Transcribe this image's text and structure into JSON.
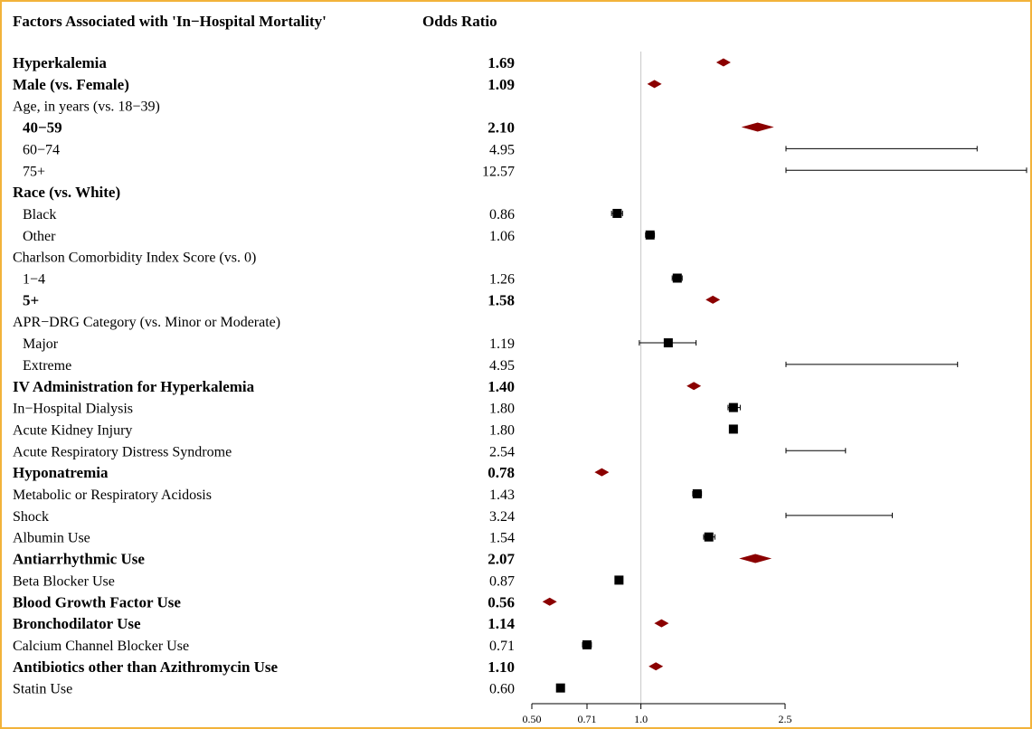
{
  "chart_data": {
    "type": "forest",
    "header": {
      "label_col": "Factors Associated with 'In−Hospital Mortality'",
      "value_col": "Odds Ratio"
    },
    "x_scale": "log",
    "xlim": [
      0.5,
      2.5
    ],
    "reference_line": 1.0,
    "x_ticks": [
      "0.50",
      "0.71",
      "1.0",
      "2.5"
    ],
    "x_tick_values": [
      0.5,
      0.71,
      1.0,
      2.5
    ],
    "colors": {
      "diamond": "#8b0000",
      "square": "#000000",
      "line": "#000000",
      "ref": "#c8c8c8"
    },
    "rows": [
      {
        "label": "Hyperkalemia",
        "or": "1.69",
        "value": 1.69,
        "bold": true,
        "indent": false,
        "marker": "diamond",
        "ci": null
      },
      {
        "label": "Male (vs. Female)",
        "or": "1.09",
        "value": 1.09,
        "bold": true,
        "indent": false,
        "marker": "diamond",
        "ci": null
      },
      {
        "label": "Age, in years (vs. 18−39)",
        "or": "",
        "value": null,
        "bold": false,
        "indent": false,
        "marker": "none",
        "ci": null
      },
      {
        "label": "40−59",
        "or": "2.10",
        "value": 2.1,
        "bold": true,
        "indent": true,
        "marker": "diamond",
        "ci": null
      },
      {
        "label": "60−74",
        "or": "4.95",
        "value": 4.95,
        "bold": false,
        "indent": true,
        "marker": "square",
        "ci": [
          4.1,
          6.0
        ]
      },
      {
        "label": "75+",
        "or": "12.57",
        "value": 12.57,
        "bold": false,
        "indent": true,
        "marker": "square",
        "ci": [
          10.0,
          15.5
        ]
      },
      {
        "label": "Race (vs. White)",
        "or": "",
        "value": null,
        "bold": true,
        "indent": false,
        "marker": "none",
        "ci": null
      },
      {
        "label": "Black",
        "or": "0.86",
        "value": 0.86,
        "bold": false,
        "indent": true,
        "marker": "square",
        "ci": [
          0.83,
          0.89
        ]
      },
      {
        "label": "Other",
        "or": "1.06",
        "value": 1.06,
        "bold": false,
        "indent": true,
        "marker": "square",
        "ci": [
          1.03,
          1.09
        ]
      },
      {
        "label": "Charlson Comorbidity Index Score (vs. 0)",
        "or": "",
        "value": null,
        "bold": false,
        "indent": false,
        "marker": "none",
        "ci": null
      },
      {
        "label": "1−4",
        "or": "1.26",
        "value": 1.26,
        "bold": false,
        "indent": true,
        "marker": "square",
        "ci": [
          1.22,
          1.3
        ]
      },
      {
        "label": "5+",
        "or": "1.58",
        "value": 1.58,
        "bold": true,
        "indent": true,
        "marker": "diamond",
        "ci": null
      },
      {
        "label": "APR−DRG Category (vs. Minor or Moderate)",
        "or": "",
        "value": null,
        "bold": false,
        "indent": false,
        "marker": "none",
        "ci": null
      },
      {
        "label": "Major",
        "or": "1.19",
        "value": 1.19,
        "bold": false,
        "indent": true,
        "marker": "square",
        "ci": [
          0.99,
          1.42
        ]
      },
      {
        "label": "Extreme",
        "or": "4.95",
        "value": 4.95,
        "bold": false,
        "indent": true,
        "marker": "square",
        "ci": [
          4.1,
          5.3
        ]
      },
      {
        "label": "IV Administration for Hyperkalemia",
        "or": "1.40",
        "value": 1.4,
        "bold": true,
        "indent": false,
        "marker": "diamond",
        "ci": null
      },
      {
        "label": "In−Hospital Dialysis",
        "or": "1.80",
        "value": 1.8,
        "bold": false,
        "indent": false,
        "marker": "square",
        "ci": [
          1.74,
          1.88
        ]
      },
      {
        "label": "Acute Kidney Injury",
        "or": "1.80",
        "value": 1.8,
        "bold": false,
        "indent": false,
        "marker": "square",
        "ci": [
          1.76,
          1.84
        ]
      },
      {
        "label": "Acute Respiratory Distress Syndrome",
        "or": "2.54",
        "value": 2.54,
        "bold": false,
        "indent": false,
        "marker": "square",
        "ci": [
          2.45,
          2.6
        ]
      },
      {
        "label": "Hyponatremia",
        "or": "0.78",
        "value": 0.78,
        "bold": true,
        "indent": false,
        "marker": "diamond",
        "ci": null
      },
      {
        "label": "Metabolic or Respiratory Acidosis",
        "or": "1.43",
        "value": 1.43,
        "bold": false,
        "indent": false,
        "marker": "square",
        "ci": [
          1.39,
          1.47
        ]
      },
      {
        "label": "Shock",
        "or": "3.24",
        "value": 3.24,
        "bold": false,
        "indent": false,
        "marker": "square",
        "ci": [
          3.0,
          3.5
        ]
      },
      {
        "label": "Albumin Use",
        "or": "1.54",
        "value": 1.54,
        "bold": false,
        "indent": false,
        "marker": "square",
        "ci": [
          1.49,
          1.6
        ]
      },
      {
        "label": "Antiarrhythmic Use",
        "or": "2.07",
        "value": 2.07,
        "bold": true,
        "indent": false,
        "marker": "diamond",
        "ci": null
      },
      {
        "label": "Beta Blocker Use",
        "or": "0.87",
        "value": 0.87,
        "bold": false,
        "indent": false,
        "marker": "square",
        "ci": [
          0.85,
          0.89
        ]
      },
      {
        "label": "Blood Growth Factor Use",
        "or": "0.56",
        "value": 0.56,
        "bold": true,
        "indent": false,
        "marker": "diamond",
        "ci": null
      },
      {
        "label": "Bronchodilator Use",
        "or": "1.14",
        "value": 1.14,
        "bold": true,
        "indent": false,
        "marker": "diamond",
        "ci": null
      },
      {
        "label": "Calcium Channel Blocker Use",
        "or": "0.71",
        "value": 0.71,
        "bold": false,
        "indent": false,
        "marker": "square",
        "ci": [
          0.69,
          0.73
        ]
      },
      {
        "label": "Antibiotics other than Azithromycin Use",
        "or": "1.10",
        "value": 1.1,
        "bold": true,
        "indent": false,
        "marker": "diamond",
        "ci": null
      },
      {
        "label": "Statin Use",
        "or": "0.60",
        "value": 0.6,
        "bold": false,
        "indent": false,
        "marker": "square",
        "ci": [
          0.59,
          0.61
        ]
      }
    ]
  }
}
